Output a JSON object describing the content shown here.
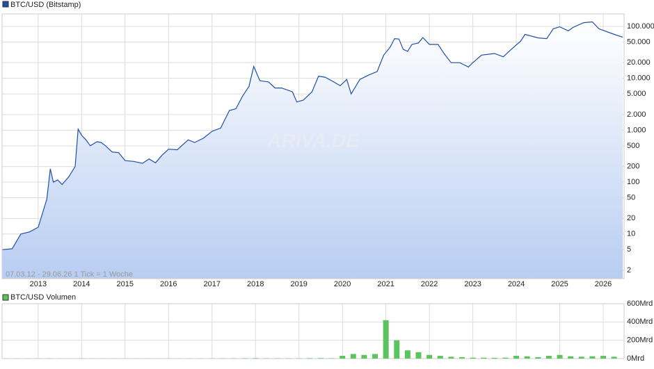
{
  "chart_data": [
    {
      "type": "line",
      "title": "BTC/USD (Bitstamp)",
      "annotation": "07.03.12 - 29.06.26   1 Tick = 1 Woche",
      "watermark": "ARIVA.DE",
      "log_scale": true,
      "grid": true,
      "color": "#1f4fa8",
      "fill_color": "#b8cdf2",
      "xlim": [
        2012.17,
        2026.48
      ],
      "xticks": [
        2013,
        2014,
        2015,
        2016,
        2017,
        2018,
        2019,
        2020,
        2021,
        2022,
        2023,
        2024,
        2025,
        2026
      ],
      "ylim": [
        1.38,
        174000
      ],
      "yticks": [
        2,
        5,
        10,
        20,
        50,
        100,
        200,
        500,
        {
          "value": 1000,
          "label": "1.000"
        },
        {
          "value": 2000,
          "label": "2.000"
        },
        {
          "value": 5000,
          "label": "5.000"
        },
        {
          "value": 10000,
          "label": "10.000"
        },
        {
          "value": 20000,
          "label": "20.000"
        },
        {
          "value": 50000,
          "label": "50.000"
        },
        {
          "value": 100000,
          "label": "100.000"
        }
      ],
      "x": [
        2012.18,
        2012.4,
        2012.6,
        2012.8,
        2013.0,
        2013.2,
        2013.28,
        2013.35,
        2013.45,
        2013.55,
        2013.7,
        2013.85,
        2013.92,
        2014.0,
        2014.1,
        2014.2,
        2014.35,
        2014.45,
        2014.55,
        2014.7,
        2014.85,
        2015.0,
        2015.2,
        2015.4,
        2015.55,
        2015.7,
        2015.85,
        2016.0,
        2016.2,
        2016.45,
        2016.6,
        2016.8,
        2017.0,
        2017.2,
        2017.4,
        2017.55,
        2017.7,
        2017.85,
        2017.96,
        2018.1,
        2018.3,
        2018.45,
        2018.6,
        2018.85,
        2018.95,
        2019.1,
        2019.3,
        2019.45,
        2019.6,
        2019.8,
        2019.95,
        2020.1,
        2020.2,
        2020.4,
        2020.6,
        2020.8,
        2020.95,
        2021.1,
        2021.2,
        2021.3,
        2021.4,
        2021.5,
        2021.6,
        2021.75,
        2021.85,
        2022.0,
        2022.2,
        2022.35,
        2022.5,
        2022.7,
        2022.9,
        2023.0,
        2023.2,
        2023.5,
        2023.7,
        2023.9,
        2024.1,
        2024.2,
        2024.5,
        2024.7,
        2024.85,
        2025.0,
        2025.2,
        2025.3,
        2025.55,
        2025.75,
        2025.9,
        2026.1,
        2026.3,
        2026.45
      ],
      "values": [
        5,
        5.2,
        10,
        11,
        13.5,
        47,
        180,
        100,
        110,
        90,
        125,
        200,
        1050,
        800,
        650,
        500,
        600,
        580,
        500,
        380,
        370,
        260,
        250,
        230,
        280,
        235,
        330,
        430,
        420,
        650,
        580,
        700,
        950,
        1100,
        2400,
        2600,
        4500,
        7000,
        17000,
        9000,
        8500,
        6500,
        6500,
        5500,
        3500,
        3800,
        5500,
        11000,
        10500,
        8500,
        7200,
        9500,
        5000,
        9500,
        11500,
        13500,
        28000,
        40000,
        58000,
        57000,
        36000,
        33000,
        45000,
        48000,
        61000,
        45000,
        45000,
        29000,
        20000,
        20000,
        16500,
        20000,
        28000,
        30000,
        26000,
        37000,
        52000,
        70000,
        60000,
        58000,
        90000,
        98000,
        82000,
        95000,
        118000,
        122000,
        90000,
        78000,
        68000,
        62000
      ]
    },
    {
      "type": "bar",
      "title": "BTC/USD Volumen",
      "color": "#5cc45c",
      "grid": true,
      "xlim": [
        2012.17,
        2026.48
      ],
      "xticks": [
        2013,
        2014,
        2015,
        2016,
        2017,
        2018,
        2019,
        2020,
        2021,
        2022,
        2023,
        2024,
        2025,
        2026
      ],
      "ylim": [
        0,
        600
      ],
      "yticks": [
        {
          "value": 0,
          "label": "0Mrd"
        },
        {
          "value": 200,
          "label": "200Mrd"
        },
        {
          "value": 400,
          "label": "400Mrd"
        },
        {
          "value": 600,
          "label": "600Mrd"
        }
      ],
      "x": [
        2012.25,
        2012.5,
        2012.75,
        2013.0,
        2013.25,
        2013.5,
        2013.75,
        2014.0,
        2014.25,
        2014.5,
        2014.75,
        2015.0,
        2015.25,
        2015.5,
        2015.75,
        2016.0,
        2016.25,
        2016.5,
        2016.75,
        2017.0,
        2017.25,
        2017.5,
        2017.75,
        2018.0,
        2018.25,
        2018.5,
        2018.75,
        2019.0,
        2019.25,
        2019.5,
        2019.75,
        2020.0,
        2020.25,
        2020.5,
        2020.75,
        2021.0,
        2021.25,
        2021.5,
        2021.75,
        2022.0,
        2022.25,
        2022.5,
        2022.75,
        2023.0,
        2023.25,
        2023.5,
        2023.75,
        2024.0,
        2024.25,
        2024.5,
        2024.75,
        2025.0,
        2025.25,
        2025.5,
        2025.75,
        2026.0,
        2026.25
      ],
      "values": [
        1,
        1,
        1,
        1,
        2,
        1,
        1,
        2,
        1,
        1,
        1,
        1,
        1,
        1,
        1,
        1,
        1,
        1,
        1,
        2,
        2,
        3,
        4,
        5,
        3,
        3,
        3,
        3,
        5,
        6,
        4,
        30,
        50,
        40,
        50,
        420,
        200,
        90,
        70,
        40,
        30,
        20,
        15,
        10,
        10,
        8,
        10,
        30,
        25,
        15,
        30,
        40,
        25,
        20,
        25,
        30,
        20
      ]
    }
  ]
}
